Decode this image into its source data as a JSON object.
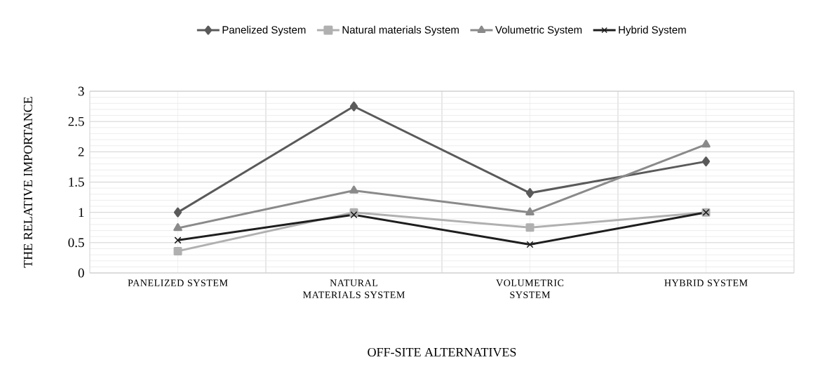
{
  "chart_data": {
    "type": "line",
    "xlabel": "OFF-SITE ALTERNATIVES",
    "ylabel": "THE RELATIVE IMPORTANCE",
    "categories": [
      "PANELIZED SYSTEM",
      "NATURAL MATERIALS SYSTEM",
      "VOLUMETRIC SYSTEM",
      "HYBRID SYSTEM"
    ],
    "series": [
      {
        "name": "Panelized System",
        "color": "#5a5a5a",
        "marker": "diamond",
        "values": [
          1.0,
          2.75,
          1.32,
          1.84
        ]
      },
      {
        "name": "Natural materials System",
        "color": "#b0b0b0",
        "marker": "square",
        "values": [
          0.36,
          1.0,
          0.75,
          1.0
        ]
      },
      {
        "name": "Volumetric System",
        "color": "#8a8a8a",
        "marker": "triangle",
        "values": [
          0.74,
          1.36,
          1.0,
          2.12
        ]
      },
      {
        "name": "Hybrid System",
        "color": "#1e1e1e",
        "marker": "cross",
        "values": [
          0.54,
          0.96,
          0.47,
          1.0
        ]
      }
    ],
    "ylim": [
      0,
      3
    ],
    "yticks": [
      0,
      0.5,
      1,
      1.5,
      2,
      2.5,
      3
    ],
    "grid": true,
    "legend": "top",
    "line_style": "solid"
  }
}
